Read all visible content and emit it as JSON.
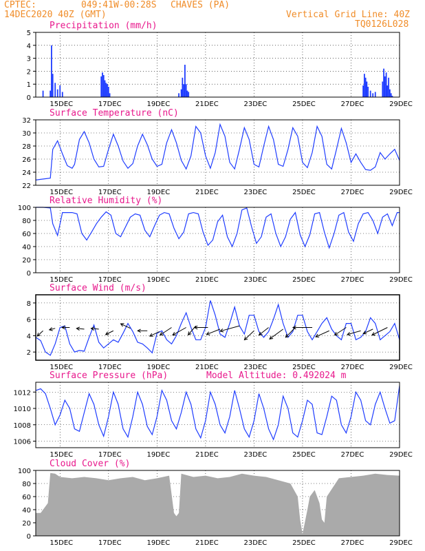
{
  "header": {
    "source": "CPTEC:",
    "coords": "049:41W-00:28S",
    "location": "CHAVES (PA)",
    "date": "14DEC2020 40Z (GMT)",
    "grid_line": "Vertical Grid Line: 40Z",
    "code": "TQ0126L028"
  },
  "colors": {
    "header": "#f08c28",
    "title": "#e8188c",
    "line": "#1e3cff",
    "cloud": "#aaaaaa",
    "grid": "#000000"
  },
  "chart_data": [
    {
      "type": "bar",
      "title": "Precipitation (mm/h)",
      "ylim": [
        0,
        5
      ],
      "yticks": [
        "0",
        "1",
        "2",
        "3",
        "4",
        "5"
      ],
      "xlim": [
        14.0,
        29.0
      ],
      "xticks": [
        "15DEC",
        "17DEC",
        "19DEC",
        "21DEC",
        "23DEC",
        "25DEC",
        "27DEC",
        "29DEC"
      ],
      "x": [
        14.3,
        14.6,
        14.65,
        14.7,
        14.8,
        14.9,
        15.0,
        15.1,
        16.7,
        16.75,
        16.8,
        16.85,
        16.9,
        16.95,
        17.0,
        17.05,
        19.9,
        20.0,
        20.05,
        20.1,
        20.15,
        20.2,
        20.25,
        20.3,
        27.5,
        27.55,
        27.6,
        27.65,
        27.7,
        27.8,
        27.9,
        28.0,
        28.3,
        28.35,
        28.4,
        28.45,
        28.5,
        28.55,
        28.6,
        28.65,
        28.7
      ],
      "values": [
        0.5,
        0.5,
        4.0,
        1.8,
        1.1,
        0.6,
        0.9,
        0.4,
        1.6,
        1.9,
        1.7,
        1.3,
        1.1,
        1.0,
        0.8,
        0.3,
        0.3,
        0.6,
        1.5,
        1.0,
        2.5,
        1.0,
        0.5,
        0.4,
        0.9,
        1.8,
        1.5,
        1.2,
        0.8,
        0.5,
        0.3,
        0.4,
        1.2,
        2.2,
        1.6,
        1.9,
        0.9,
        1.5,
        0.6,
        0.3,
        0.1
      ]
    },
    {
      "type": "line",
      "title": "Surface Temperature (nC)",
      "ylim": [
        22,
        32
      ],
      "yticks": [
        "22",
        "24",
        "26",
        "28",
        "30",
        "32"
      ],
      "xlim": [
        14.0,
        29.0
      ],
      "xticks": [
        "15DEC",
        "17DEC",
        "19DEC",
        "21DEC",
        "23DEC",
        "25DEC",
        "27DEC",
        "29DEC"
      ],
      "x": [
        14.0,
        14.2,
        14.4,
        14.6,
        14.7,
        14.9,
        15.1,
        15.3,
        15.5,
        15.6,
        15.8,
        16.0,
        16.2,
        16.4,
        16.6,
        16.8,
        17.0,
        17.2,
        17.4,
        17.6,
        17.8,
        18.0,
        18.2,
        18.4,
        18.6,
        18.8,
        19.0,
        19.2,
        19.4,
        19.6,
        19.8,
        20.0,
        20.2,
        20.4,
        20.6,
        20.8,
        21.0,
        21.2,
        21.4,
        21.6,
        21.8,
        22.0,
        22.2,
        22.4,
        22.6,
        22.8,
        23.0,
        23.2,
        23.4,
        23.6,
        23.8,
        24.0,
        24.2,
        24.4,
        24.6,
        24.8,
        25.0,
        25.2,
        25.4,
        25.6,
        25.8,
        26.0,
        26.2,
        26.4,
        26.6,
        26.8,
        27.0,
        27.2,
        27.4,
        27.6,
        27.8,
        28.0,
        28.2,
        28.4,
        28.6,
        28.8,
        29.0
      ],
      "values": [
        22.8,
        22.9,
        23.0,
        23.1,
        27.5,
        28.8,
        26.8,
        25.0,
        24.6,
        25.2,
        29.0,
        30.2,
        28.5,
        26.0,
        24.8,
        24.9,
        27.5,
        29.8,
        28.0,
        25.7,
        24.6,
        25.3,
        28.0,
        29.8,
        28.2,
        26.0,
        24.9,
        25.2,
        28.5,
        30.5,
        28.5,
        25.8,
        24.5,
        26.5,
        31.0,
        30.0,
        26.5,
        24.6,
        27.0,
        31.3,
        29.5,
        25.5,
        24.5,
        27.5,
        30.8,
        29.0,
        25.2,
        24.8,
        28.0,
        31.0,
        29.0,
        25.2,
        24.9,
        27.5,
        30.8,
        29.5,
        25.5,
        24.7,
        27.0,
        31.0,
        29.5,
        25.2,
        24.5,
        27.5,
        30.7,
        28.5,
        25.5,
        26.8,
        25.5,
        24.4,
        24.3,
        24.8,
        27.0,
        26.0,
        26.8,
        27.5,
        25.8
      ]
    },
    {
      "type": "line",
      "title": "Relative Humidity (%)",
      "ylim": [
        0,
        100
      ],
      "yticks": [
        "0",
        "20",
        "40",
        "60",
        "80",
        "100"
      ],
      "xlim": [
        14.0,
        29.0
      ],
      "xticks": [
        "15DEC",
        "17DEC",
        "19DEC",
        "21DEC",
        "23DEC",
        "25DEC",
        "27DEC",
        "29DEC"
      ],
      "x": [
        14.0,
        14.3,
        14.6,
        14.7,
        14.9,
        15.1,
        15.3,
        15.5,
        15.7,
        15.9,
        16.1,
        16.3,
        16.5,
        16.7,
        16.9,
        17.1,
        17.3,
        17.5,
        17.7,
        17.9,
        18.1,
        18.3,
        18.5,
        18.7,
        18.9,
        19.1,
        19.3,
        19.5,
        19.7,
        19.9,
        20.1,
        20.3,
        20.5,
        20.7,
        20.9,
        21.1,
        21.3,
        21.5,
        21.7,
        21.9,
        22.1,
        22.3,
        22.5,
        22.7,
        22.9,
        23.1,
        23.3,
        23.5,
        23.7,
        23.9,
        24.1,
        24.3,
        24.5,
        24.7,
        24.9,
        25.1,
        25.3,
        25.5,
        25.7,
        25.9,
        26.1,
        26.3,
        26.5,
        26.7,
        26.9,
        27.1,
        27.3,
        27.5,
        27.7,
        27.9,
        28.1,
        28.3,
        28.5,
        28.7,
        28.9,
        29.0
      ],
      "values": [
        100,
        100,
        99,
        75,
        57,
        92,
        92,
        92,
        90,
        60,
        50,
        62,
        75,
        85,
        93,
        88,
        60,
        55,
        70,
        85,
        90,
        88,
        65,
        55,
        72,
        88,
        92,
        90,
        68,
        52,
        62,
        90,
        92,
        90,
        62,
        42,
        50,
        78,
        88,
        55,
        40,
        60,
        96,
        99,
        70,
        45,
        55,
        85,
        90,
        60,
        40,
        55,
        82,
        92,
        58,
        40,
        58,
        90,
        92,
        62,
        38,
        60,
        88,
        92,
        62,
        48,
        75,
        90,
        92,
        80,
        60,
        85,
        90,
        72,
        92,
        92
      ]
    },
    {
      "type": "line",
      "title": "Surface Wind (m/s)",
      "ylim": [
        1,
        9
      ],
      "yticks": [
        "2",
        "4",
        "6",
        "8"
      ],
      "xlim": [
        14.0,
        29.0
      ],
      "xticks": [
        "15DEC",
        "17DEC",
        "19DEC",
        "21DEC",
        "23DEC",
        "25DEC",
        "27DEC",
        "29DEC"
      ],
      "x": [
        14.0,
        14.2,
        14.4,
        14.6,
        14.8,
        15.0,
        15.2,
        15.4,
        15.6,
        15.8,
        16.0,
        16.2,
        16.4,
        16.6,
        16.8,
        17.0,
        17.2,
        17.4,
        17.6,
        17.8,
        18.0,
        18.2,
        18.4,
        18.6,
        18.8,
        19.0,
        19.2,
        19.4,
        19.6,
        19.8,
        20.0,
        20.2,
        20.4,
        20.6,
        20.8,
        21.0,
        21.2,
        21.4,
        21.6,
        21.8,
        22.0,
        22.2,
        22.4,
        22.6,
        22.8,
        23.0,
        23.2,
        23.4,
        23.6,
        23.8,
        24.0,
        24.2,
        24.4,
        24.6,
        24.8,
        25.0,
        25.2,
        25.4,
        25.6,
        25.8,
        26.0,
        26.2,
        26.4,
        26.6,
        26.8,
        27.0,
        27.2,
        27.4,
        27.6,
        27.8,
        28.0,
        28.2,
        28.4,
        28.6,
        28.8,
        29.0
      ],
      "values": [
        3.8,
        3.4,
        2.0,
        1.6,
        3.0,
        5.0,
        5.2,
        3.0,
        2.0,
        2.2,
        2.1,
        3.8,
        5.3,
        3.2,
        2.5,
        3.0,
        3.5,
        3.2,
        4.3,
        5.5,
        4.5,
        3.2,
        3.0,
        2.5,
        1.9,
        4.3,
        4.6,
        3.5,
        3.0,
        4.0,
        5.5,
        6.8,
        5.0,
        3.5,
        3.5,
        5.0,
        8.3,
        6.5,
        4.2,
        3.8,
        5.5,
        7.5,
        5.2,
        4.2,
        6.5,
        6.5,
        4.5,
        3.8,
        4.5,
        6.0,
        7.8,
        5.5,
        3.8,
        4.5,
        6.5,
        6.5,
        4.5,
        3.5,
        4.5,
        5.5,
        6.2,
        4.8,
        4.0,
        3.5,
        5.5,
        5.5,
        3.5,
        3.8,
        4.5,
        6.2,
        5.5,
        3.5,
        4.0,
        4.5,
        5.5,
        3.5
      ],
      "arrows": [
        {
          "x": 14.3,
          "y": 4.6,
          "dx": -0.3,
          "dy": -0.7
        },
        {
          "x": 14.8,
          "y": 4.9,
          "dx": -0.3,
          "dy": -0.2
        },
        {
          "x": 15.4,
          "y": 5.0,
          "dx": -0.4,
          "dy": 0.0
        },
        {
          "x": 16.0,
          "y": 4.8,
          "dx": -0.4,
          "dy": 0.1
        },
        {
          "x": 16.6,
          "y": 4.8,
          "dx": -0.4,
          "dy": 0.1
        },
        {
          "x": 17.2,
          "y": 4.6,
          "dx": -0.4,
          "dy": -0.5
        },
        {
          "x": 17.9,
          "y": 4.9,
          "dx": -0.5,
          "dy": 0.6
        },
        {
          "x": 18.6,
          "y": 4.6,
          "dx": -0.5,
          "dy": 0.0
        },
        {
          "x": 19.1,
          "y": 4.5,
          "dx": -0.5,
          "dy": -0.6
        },
        {
          "x": 19.6,
          "y": 5.0,
          "dx": -0.6,
          "dy": -1.0
        },
        {
          "x": 20.2,
          "y": 5.0,
          "dx": -0.7,
          "dy": -1.0
        },
        {
          "x": 20.6,
          "y": 5.2,
          "dx": -0.4,
          "dy": -1.2
        },
        {
          "x": 21.1,
          "y": 5.0,
          "dx": -0.7,
          "dy": 0.0
        },
        {
          "x": 21.6,
          "y": 4.8,
          "dx": -0.7,
          "dy": -0.7
        },
        {
          "x": 22.4,
          "y": 5.2,
          "dx": -1.0,
          "dy": -0.7
        },
        {
          "x": 23.0,
          "y": 4.6,
          "dx": -0.5,
          "dy": -1.2
        },
        {
          "x": 23.6,
          "y": 5.0,
          "dx": -0.5,
          "dy": -1.0
        },
        {
          "x": 24.2,
          "y": 4.8,
          "dx": -0.7,
          "dy": -1.3
        },
        {
          "x": 24.7,
          "y": 5.0,
          "dx": -0.5,
          "dy": -1.3
        },
        {
          "x": 25.4,
          "y": 5.0,
          "dx": -1.0,
          "dy": 0.0
        },
        {
          "x": 26.1,
          "y": 4.6,
          "dx": -0.7,
          "dy": -0.8
        },
        {
          "x": 26.8,
          "y": 5.0,
          "dx": -0.6,
          "dy": -1.0
        },
        {
          "x": 27.4,
          "y": 4.6,
          "dx": -0.7,
          "dy": -0.5
        },
        {
          "x": 27.9,
          "y": 4.8,
          "dx": -0.5,
          "dy": -0.6
        },
        {
          "x": 28.5,
          "y": 5.0,
          "dx": -0.8,
          "dy": -1.0
        }
      ]
    },
    {
      "type": "line",
      "title": "Surface Pressure (hPa)",
      "subtitle": "Model Altitude: 0.492024 m",
      "ylim": [
        1005.2,
        1013.2
      ],
      "yticks": [
        "1006",
        "1008",
        "1010",
        "1012"
      ],
      "xlim": [
        14.0,
        29.0
      ],
      "xticks": [
        "15DEC",
        "17DEC",
        "19DEC",
        "21DEC",
        "23DEC",
        "25DEC",
        "27DEC",
        "29DEC"
      ],
      "x": [
        14.0,
        14.2,
        14.4,
        14.6,
        14.8,
        15.0,
        15.2,
        15.4,
        15.6,
        15.8,
        16.0,
        16.2,
        16.4,
        16.6,
        16.8,
        17.0,
        17.2,
        17.4,
        17.6,
        17.8,
        18.0,
        18.2,
        18.4,
        18.6,
        18.8,
        19.0,
        19.2,
        19.4,
        19.6,
        19.8,
        20.0,
        20.2,
        20.4,
        20.6,
        20.8,
        21.0,
        21.2,
        21.4,
        21.6,
        21.8,
        22.0,
        22.2,
        22.4,
        22.6,
        22.8,
        23.0,
        23.2,
        23.4,
        23.6,
        23.8,
        24.0,
        24.2,
        24.4,
        24.6,
        24.8,
        25.0,
        25.2,
        25.4,
        25.6,
        25.8,
        26.0,
        26.2,
        26.4,
        26.6,
        26.8,
        27.0,
        27.2,
        27.4,
        27.6,
        27.8,
        28.0,
        28.2,
        28.4,
        28.6,
        28.8,
        29.0
      ],
      "values": [
        1012.2,
        1012.4,
        1011.8,
        1010.0,
        1008.0,
        1009.2,
        1011.0,
        1010.0,
        1007.5,
        1007.2,
        1009.5,
        1011.8,
        1010.5,
        1008.0,
        1006.6,
        1009.0,
        1012.0,
        1010.5,
        1007.5,
        1006.5,
        1009.0,
        1012.0,
        1010.5,
        1007.8,
        1006.8,
        1009.0,
        1012.2,
        1011.0,
        1008.5,
        1007.5,
        1009.5,
        1012.0,
        1010.5,
        1007.5,
        1006.4,
        1008.5,
        1012.0,
        1010.5,
        1008.0,
        1007.0,
        1009.0,
        1012.2,
        1010.0,
        1007.5,
        1006.5,
        1008.5,
        1011.8,
        1010.0,
        1007.5,
        1006.2,
        1008.0,
        1011.5,
        1010.0,
        1007.0,
        1006.5,
        1008.5,
        1011.0,
        1010.5,
        1007.0,
        1006.8,
        1009.0,
        1011.5,
        1011.0,
        1008.0,
        1007.0,
        1009.0,
        1012.0,
        1011.0,
        1008.5,
        1008.0,
        1010.5,
        1012.0,
        1010.0,
        1008.2,
        1008.5,
        1012.8
      ]
    },
    {
      "type": "area",
      "title": "Cloud Cover (%)",
      "ylim": [
        0,
        100
      ],
      "yticks": [
        "0",
        "20",
        "40",
        "60",
        "80",
        "100"
      ],
      "xlim": [
        14.0,
        29.0
      ],
      "xticks": [
        "15DEC",
        "17DEC",
        "19DEC",
        "21DEC",
        "23DEC",
        "25DEC",
        "27DEC",
        "29DEC"
      ],
      "x": [
        14.0,
        14.2,
        14.4,
        14.5,
        14.6,
        14.8,
        15.0,
        15.5,
        16.0,
        16.5,
        17.0,
        17.5,
        18.0,
        18.5,
        19.0,
        19.5,
        19.7,
        19.8,
        19.9,
        20.0,
        20.5,
        21.0,
        21.5,
        22.0,
        22.5,
        23.0,
        23.5,
        24.0,
        24.5,
        24.8,
        24.9,
        25.0,
        25.2,
        25.3,
        25.5,
        25.7,
        25.8,
        25.9,
        26.0,
        26.5,
        27.0,
        27.5,
        28.0,
        28.5,
        29.0
      ],
      "values": [
        35,
        35,
        45,
        50,
        96,
        95,
        90,
        88,
        90,
        88,
        85,
        88,
        90,
        85,
        88,
        92,
        35,
        30,
        35,
        95,
        90,
        92,
        88,
        90,
        95,
        92,
        90,
        85,
        80,
        60,
        25,
        3,
        40,
        60,
        70,
        50,
        25,
        20,
        60,
        88,
        90,
        92,
        95,
        93,
        92
      ]
    }
  ]
}
